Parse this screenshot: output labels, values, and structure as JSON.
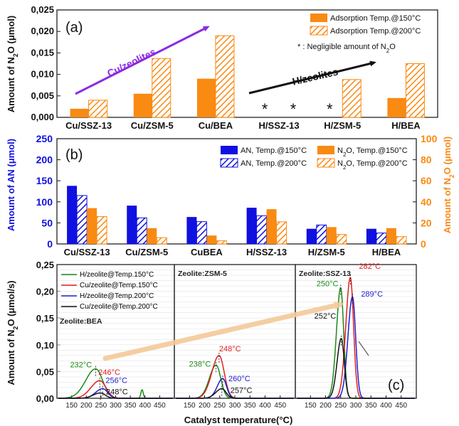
{
  "colors": {
    "orange": "#f98a12",
    "blue": "#1010e0",
    "purple": "#8a2be2",
    "green": "#1a8a1a",
    "red": "#e02020",
    "cblue": "#2020d0",
    "black": "#111111",
    "arrow_light": "#f5c99a"
  },
  "chart_data": [
    {
      "id": "a",
      "type": "bar",
      "panel_label": "(a)",
      "categories": [
        "Cu/SSZ-13",
        "Cu/ZSM-5",
        "Cu/BEA",
        "H/SSZ-13",
        "H/ZSM-5",
        "H/BEA"
      ],
      "series": [
        {
          "name": "Adsorption Temp.@150°C",
          "fill": "solid",
          "values": [
            0.002,
            0.0055,
            0.009,
            0,
            0,
            0.0045
          ]
        },
        {
          "name": "Adsorption Temp.@200°C",
          "fill": "hatched",
          "values": [
            0.004,
            0.0137,
            0.019,
            0,
            0.0088,
            0.0125
          ]
        }
      ],
      "ylabel_pre": "Amount of N",
      "ylabel_sub": "2",
      "ylabel_post": "O (μmol)",
      "ylim": [
        0,
        0.025
      ],
      "yticks": [
        "0,000",
        "0,005",
        "0,010",
        "0,015",
        "0,020",
        "0,025"
      ],
      "negligible_mark": "*",
      "negligible_categories": [
        "H/SSZ-13",
        "H/ZSM-5"
      ],
      "negligible_legend_pre": "*  : Negligible amount of N",
      "negligible_legend_sub": "2",
      "negligible_legend_post": "O",
      "annotations": [
        "Cu/zeolites",
        "H/zeolites"
      ],
      "legend_position": "top-right"
    },
    {
      "id": "b",
      "type": "bar",
      "panel_label": "(b)",
      "categories": [
        "Cu/SSZ-13",
        "Cu/ZSM-5",
        "CuBEA",
        "H/SSZ-13",
        "H/ZSM-5",
        "H/BEA"
      ],
      "series": [
        {
          "name": "AN, Temp.@150°C",
          "axis": "left",
          "fill": "solid",
          "values": [
            138,
            91,
            64,
            86,
            36,
            36
          ]
        },
        {
          "name": "AN, Temp.@200°C",
          "axis": "left",
          "fill": "hatched",
          "values": [
            115,
            62,
            53,
            67,
            45,
            26
          ]
        },
        {
          "name_pre": "N",
          "name_sub": "2",
          "name_post": "O, Temp.@150°C",
          "axis": "right",
          "fill": "solid",
          "values": [
            34,
            15,
            8,
            33,
            16,
            15
          ]
        },
        {
          "name_pre": "N",
          "name_sub": "2",
          "name_post": "O, Temp.@200°C",
          "axis": "right",
          "fill": "hatched",
          "values": [
            26,
            6,
            3,
            21,
            9,
            7
          ]
        }
      ],
      "ylabel_left": "Amount of AN (μmol)",
      "ylabel_right_pre": "Amount of N",
      "ylabel_right_sub": "2",
      "ylabel_right_post": "O (μmol)",
      "ylim_left": [
        0,
        250
      ],
      "ylim_right": [
        0,
        100
      ],
      "yticks_left": [
        "0",
        "50",
        "100",
        "150",
        "200",
        "250"
      ],
      "yticks_right": [
        "0",
        "20",
        "40",
        "60",
        "80",
        "100"
      ],
      "legend_position": "top-right"
    },
    {
      "id": "c",
      "type": "line",
      "panel_label": "(c)",
      "ylabel_pre": "Amount of N",
      "ylabel_sub": "2",
      "ylabel_post": "O (μmol/s)",
      "xlabel": "Catalyst temperature(°C)",
      "ylim": [
        0,
        0.25
      ],
      "xlim": [
        100,
        500
      ],
      "yticks": [
        "0,00",
        "0,05",
        "0,10",
        "0,15",
        "0,20",
        "0,25"
      ],
      "xticks": [
        "150",
        "200",
        "250",
        "300",
        "350",
        "400",
        "450"
      ],
      "legend": [
        "H/zeolite@Temp.150°C",
        "Cu/zeolite@Temp.150°C",
        "H/zeolite@Temp.200°C",
        "Cu/zeolite@Temp.200°C"
      ],
      "subpanels": [
        {
          "title": "Zeolite:BEA",
          "peaks": [
            {
              "series": "H/zeolite@Temp.150°C",
              "x": 232,
              "y": 0.055,
              "w": 34,
              "label": "232°C",
              "color": "green"
            },
            {
              "series": "Cu/zeolite@Temp.150°C",
              "x": 246,
              "y": 0.033,
              "w": 30,
              "label": "246°C",
              "color": "red"
            },
            {
              "series": "H/zeolite@Temp.200°C",
              "x": 256,
              "y": 0.018,
              "w": 24,
              "label": "256°C",
              "color": "cblue"
            },
            {
              "series": "Cu/zeolite@Temp.200°C",
              "x": 248,
              "y": 0.01,
              "w": 24,
              "label": "248°C",
              "color": "black"
            }
          ],
          "extra_peak": {
            "x": 390,
            "y": 0.016,
            "w": 4
          }
        },
        {
          "title": "Zeolite:ZSM-5",
          "peaks": [
            {
              "series": "H/zeolite@Temp.150°C",
              "x": 238,
              "y": 0.062,
              "w": 22,
              "label": "238°C",
              "color": "green"
            },
            {
              "series": "Cu/zeolite@Temp.150°C",
              "x": 248,
              "y": 0.08,
              "w": 24,
              "label": "248°C",
              "color": "red"
            },
            {
              "series": "H/zeolite@Temp.200°C",
              "x": 260,
              "y": 0.037,
              "w": 18,
              "label": "260°C",
              "color": "cblue"
            },
            {
              "series": "Cu/zeolite@Temp.200°C",
              "x": 257,
              "y": 0.018,
              "w": 20,
              "label": "257°C",
              "color": "black"
            }
          ]
        },
        {
          "title": "Zeolite:SSZ-13",
          "peaks": [
            {
              "series": "H/zeolite@Temp.150°C",
              "x": 250,
              "y": 0.207,
              "w": 14,
              "label": "250°C",
              "color": "green"
            },
            {
              "series": "Cu/zeolite@Temp.150°C",
              "x": 282,
              "y": 0.226,
              "w": 15,
              "label": "282°C",
              "color": "red"
            },
            {
              "series": "H/zeolite@Temp.200°C",
              "x": 289,
              "y": 0.19,
              "w": 15,
              "label": "289°C",
              "color": "cblue"
            },
            {
              "series": "Cu/zeolite@Temp.200°C",
              "x": 252,
              "y": 0.112,
              "w": 14,
              "label": "252°C",
              "color": "black"
            }
          ]
        }
      ]
    }
  ]
}
